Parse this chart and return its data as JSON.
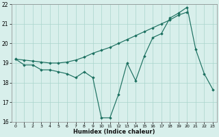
{
  "xlabel": "Humidex (Indice chaleur)",
  "line_straight_x": [
    0,
    1,
    2,
    3,
    4,
    5,
    6,
    7,
    8,
    9,
    10,
    11,
    12,
    13,
    14,
    15,
    16,
    17,
    18,
    19,
    20
  ],
  "line_straight_y": [
    19.2,
    19.15,
    19.1,
    19.05,
    19.0,
    19.0,
    19.05,
    19.15,
    19.3,
    19.5,
    19.65,
    19.8,
    20.0,
    20.2,
    20.4,
    20.6,
    20.8,
    21.0,
    21.2,
    21.45,
    21.6
  ],
  "line_vol_x": [
    0,
    1,
    2,
    3,
    4,
    5,
    6,
    7,
    8,
    9,
    10,
    11,
    12,
    13,
    14,
    15,
    16,
    17,
    18,
    19,
    20,
    21,
    22,
    23
  ],
  "line_vol_y": [
    19.2,
    18.9,
    18.9,
    18.65,
    18.65,
    18.55,
    18.45,
    18.25,
    18.55,
    18.25,
    16.2,
    16.2,
    17.4,
    19.0,
    18.1,
    19.35,
    20.3,
    20.5,
    21.3,
    21.55,
    21.85,
    19.7,
    18.45,
    17.65
  ],
  "line_color": "#1c7060",
  "bg_color": "#d8efeb",
  "grid_color": "#aad4cc",
  "ylim": [
    16,
    22
  ],
  "xlim": [
    -0.5,
    23.5
  ],
  "yticks": [
    16,
    17,
    18,
    19,
    20,
    21,
    22
  ],
  "xticks": [
    0,
    1,
    2,
    3,
    4,
    5,
    6,
    7,
    8,
    9,
    10,
    11,
    12,
    13,
    14,
    15,
    16,
    17,
    18,
    19,
    20,
    21,
    22,
    23
  ]
}
